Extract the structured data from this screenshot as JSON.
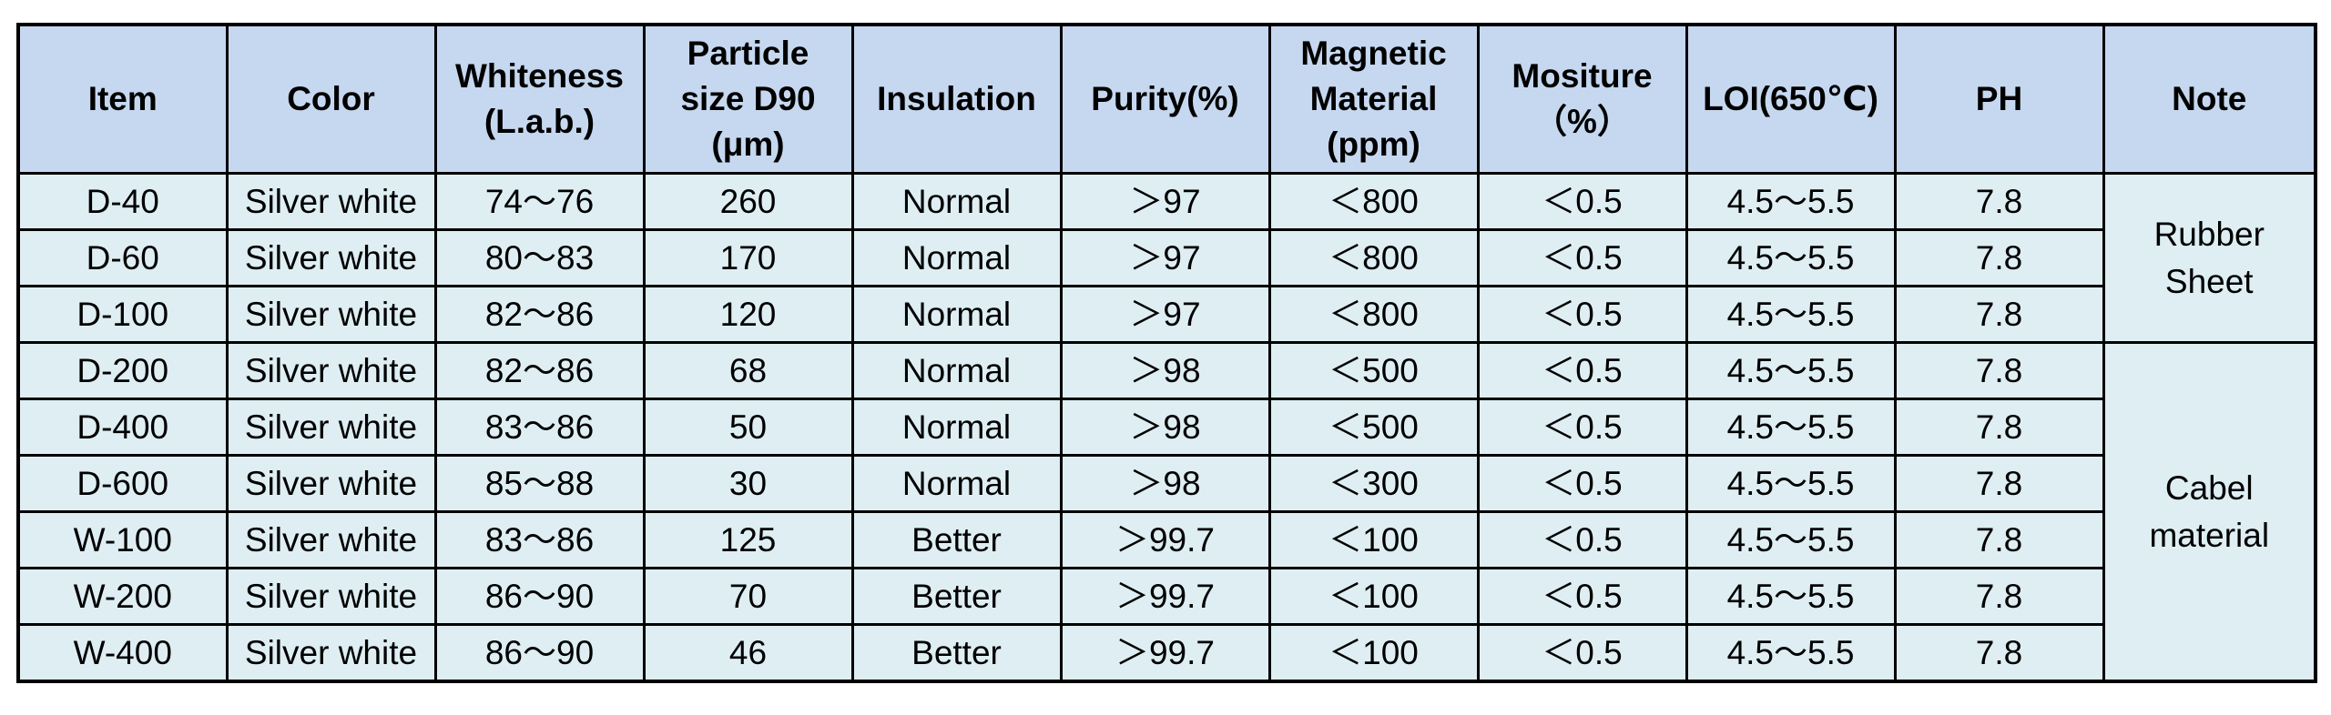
{
  "table": {
    "headers": [
      [
        "Item"
      ],
      [
        "Color"
      ],
      [
        "Whiteness",
        "(L.a.b.)"
      ],
      [
        "Particle",
        "size D90",
        "(μm)"
      ],
      [
        "Insulation"
      ],
      [
        "Purity(%)"
      ],
      [
        "Magnetic",
        "Material",
        "(ppm)"
      ],
      [
        "Mositure",
        "（%）"
      ],
      [
        "LOI(650℃)"
      ],
      [
        "PH"
      ],
      [
        "Note"
      ]
    ],
    "rows": [
      [
        "D-40",
        "Silver white",
        "74～76",
        "260",
        "Normal",
        "＞97",
        "＜800",
        "＜0.5",
        "4.5～5.5",
        "7.8"
      ],
      [
        "D-60",
        "Silver white",
        "80～83",
        "170",
        "Normal",
        "＞97",
        "＜800",
        "＜0.5",
        "4.5～5.5",
        "7.8"
      ],
      [
        "D-100",
        "Silver white",
        "82～86",
        "120",
        "Normal",
        "＞97",
        "＜800",
        "＜0.5",
        "4.5～5.5",
        "7.8"
      ],
      [
        "D-200",
        "Silver white",
        "82～86",
        "68",
        "Normal",
        "＞98",
        "＜500",
        "＜0.5",
        "4.5～5.5",
        "7.8"
      ],
      [
        "D-400",
        "Silver white",
        "83～86",
        "50",
        "Normal",
        "＞98",
        "＜500",
        "＜0.5",
        "4.5～5.5",
        "7.8"
      ],
      [
        "D-600",
        "Silver white",
        "85～88",
        "30",
        "Normal",
        "＞98",
        "＜300",
        "＜0.5",
        "4.5～5.5",
        "7.8"
      ],
      [
        "W-100",
        "Silver white",
        "83～86",
        "125",
        "Better",
        "＞99.7",
        "＜100",
        "＜0.5",
        "4.5～5.5",
        "7.8"
      ],
      [
        "W-200",
        "Silver white",
        "86～90",
        "70",
        "Better",
        "＞99.7",
        "＜100",
        "＜0.5",
        "4.5～5.5",
        "7.8"
      ],
      [
        "W-400",
        "Silver white",
        "86～90",
        "46",
        "Better",
        "＞99.7",
        "＜100",
        "＜0.5",
        "4.5～5.5",
        "7.8"
      ]
    ],
    "notes": [
      {
        "lines": [
          "Rubber",
          "Sheet"
        ],
        "row_span": 3
      },
      {
        "lines": [
          "Cabel",
          "material"
        ],
        "row_span": 6
      }
    ],
    "colors": {
      "header_bg": "#c6d8f0",
      "body_bg": "#deeef3",
      "border": "#000000"
    }
  }
}
